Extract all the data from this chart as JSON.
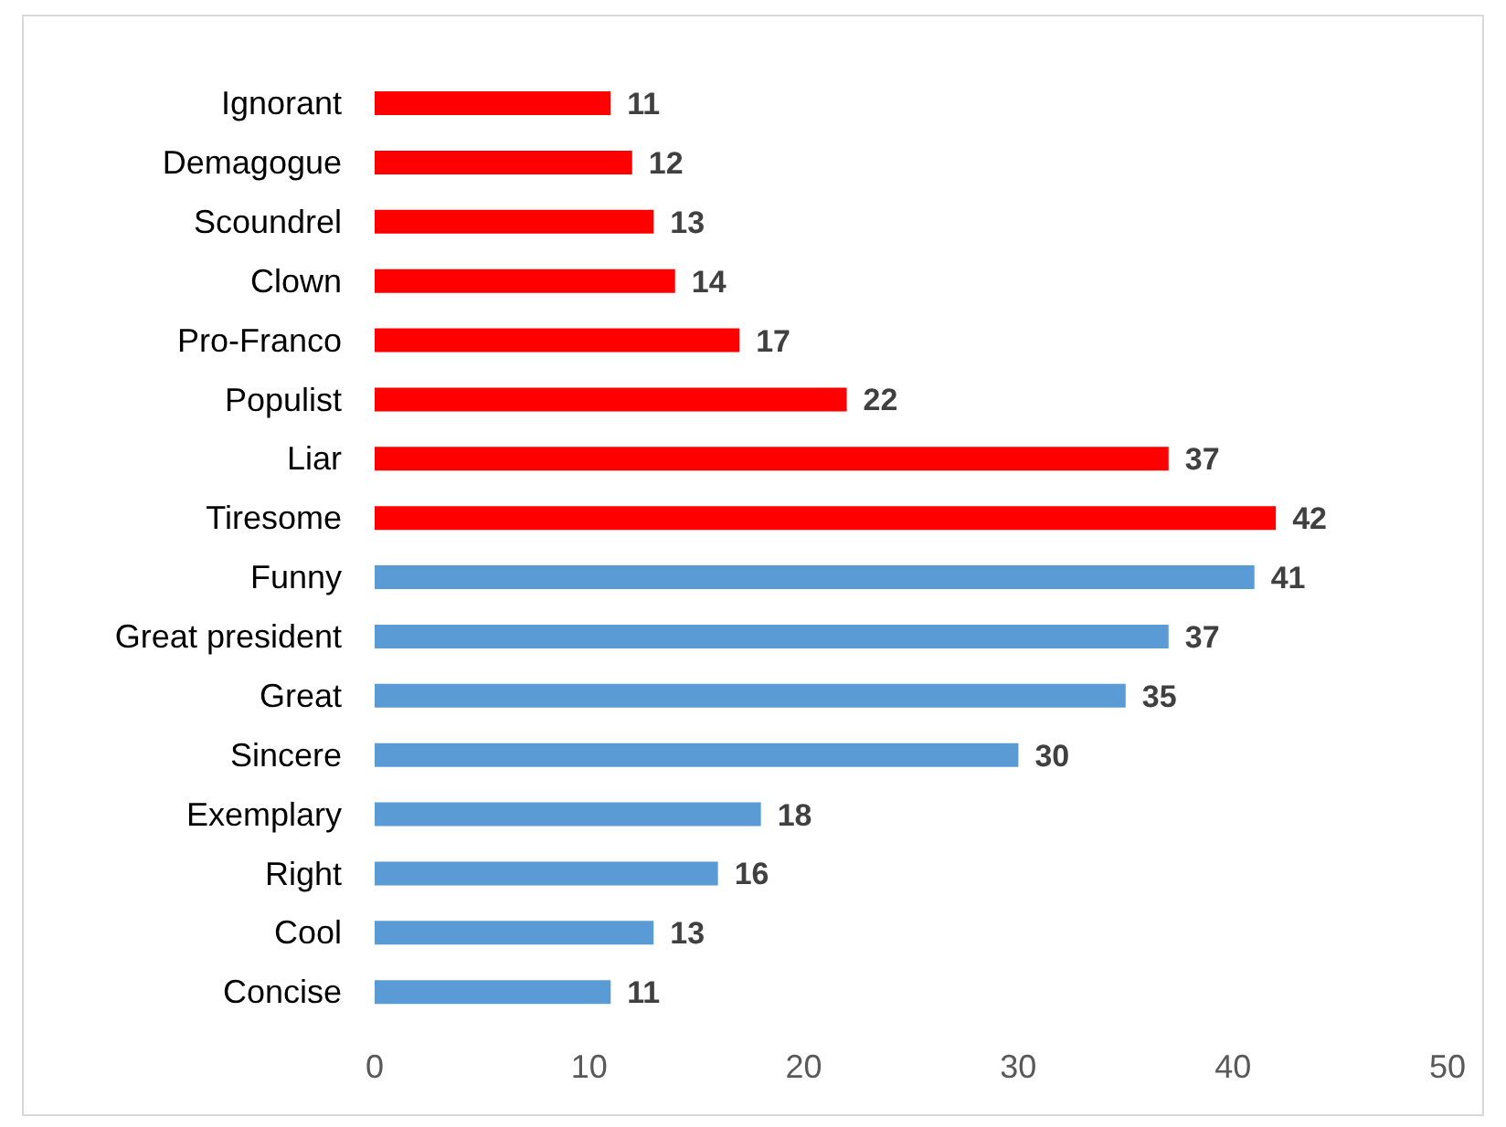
{
  "chart_data": {
    "type": "bar",
    "orientation": "horizontal",
    "categories": [
      "Ignorant",
      "Demagogue",
      "Scoundrel",
      "Clown",
      "Pro-Franco",
      "Populist",
      "Liar",
      "Tiresome",
      "Funny",
      "Great president",
      "Great",
      "Sincere",
      "Exemplary",
      "Right",
      "Cool",
      "Concise"
    ],
    "values": [
      11,
      12,
      13,
      14,
      17,
      22,
      37,
      42,
      41,
      37,
      35,
      30,
      18,
      16,
      13,
      11
    ],
    "colors": [
      "#ff0000",
      "#ff0000",
      "#ff0000",
      "#ff0000",
      "#ff0000",
      "#ff0000",
      "#ff0000",
      "#ff0000",
      "#5b9bd5",
      "#5b9bd5",
      "#5b9bd5",
      "#5b9bd5",
      "#5b9bd5",
      "#5b9bd5",
      "#5b9bd5",
      "#5b9bd5"
    ],
    "xlim": [
      0,
      50
    ],
    "xticks": [
      0,
      10,
      20,
      30,
      40,
      50
    ],
    "data_labels": true
  }
}
